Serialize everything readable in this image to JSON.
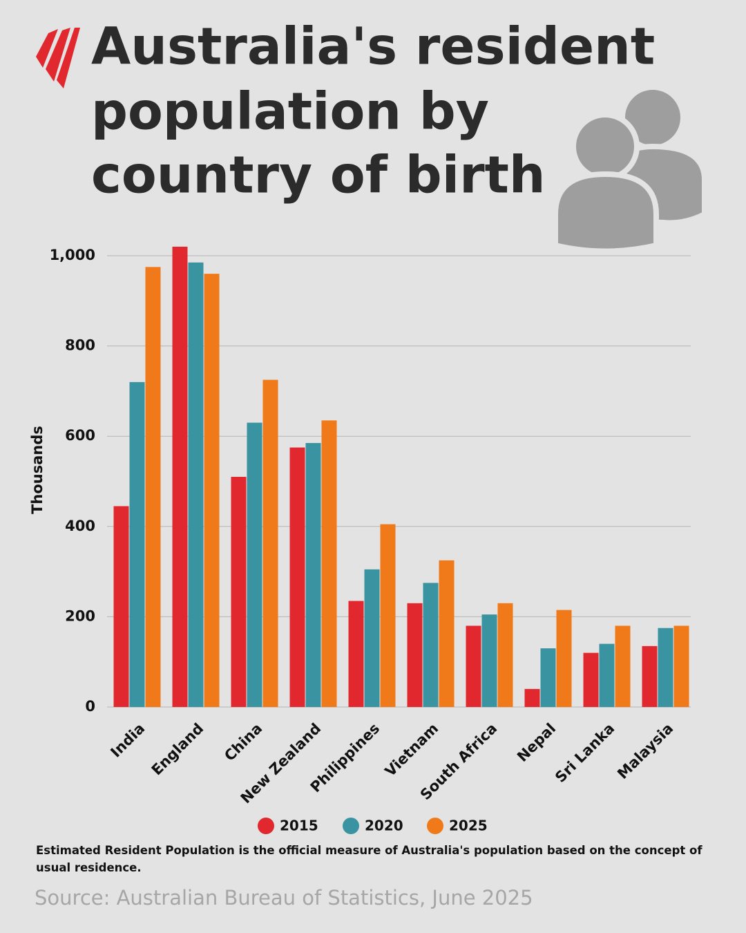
{
  "chart_data": {
    "type": "bar",
    "title": [
      "Australia's resident",
      "population by",
      "country of birth"
    ],
    "y_label": "Thousands",
    "categories": [
      "India",
      "England",
      "China",
      "New Zealand",
      "Philippines",
      "Vietnam",
      "South Africa",
      "Nepal",
      "Sri Lanka",
      "Malaysia"
    ],
    "series": [
      {
        "name": "2015",
        "color": "#e0282e",
        "values": [
          445,
          1020,
          510,
          575,
          235,
          230,
          180,
          40,
          120,
          135
        ]
      },
      {
        "name": "2020",
        "color": "#3a93a0",
        "values": [
          720,
          985,
          630,
          585,
          305,
          275,
          205,
          130,
          140,
          175
        ]
      },
      {
        "name": "2025",
        "color": "#f07a1a",
        "values": [
          975,
          960,
          725,
          635,
          405,
          325,
          230,
          215,
          180,
          180
        ]
      }
    ],
    "ylim": [
      0,
      1000
    ],
    "yticks": [
      0,
      200,
      400,
      600,
      800,
      {
        "value": 1000,
        "label": "1,000"
      }
    ],
    "grid": true,
    "note": "Estimated Resident Population is the official measure of Australia's population based on the concept of usual residence.",
    "source": "Source: Australian Bureau of Statistics, June 2025"
  }
}
